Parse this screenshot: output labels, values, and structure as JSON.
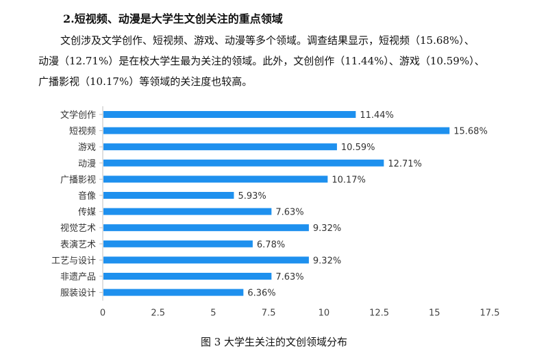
{
  "heading": "2.短视频、动漫是大学生文创关注的重点领域",
  "paragraph": {
    "line1": "文创涉及文学创作、短视频、游戏、动漫等多个领域。调查结果显示，短视频（15.68%）、",
    "line2": "动漫（12.71%）是在校大学生最为关注的领域。此外，文创创作（11.44%）、游戏（10.59%）、",
    "line3": "广播影视（10.17%）等领域的关注度也较高。"
  },
  "caption": "图 3  大学生关注的文创领域分布",
  "chart_data": {
    "type": "bar",
    "orientation": "horizontal",
    "categories": [
      "文学创作",
      "短视频",
      "游戏",
      "动漫",
      "广播影视",
      "音像",
      "传媒",
      "视觉艺术",
      "表演艺术",
      "工艺与设计",
      "非遗产品",
      "服装设计"
    ],
    "values": [
      11.44,
      15.68,
      10.59,
      12.71,
      10.17,
      5.93,
      7.63,
      9.32,
      6.78,
      9.32,
      7.63,
      6.36
    ],
    "value_labels": [
      "11.44%",
      "15.68%",
      "10.59%",
      "12.71%",
      "10.17%",
      "5.93%",
      "7.63%",
      "9.32%",
      "6.78%",
      "9.32%",
      "7.63%",
      "6.36%"
    ],
    "xlim": [
      0,
      17.5
    ],
    "xticks": [
      0,
      2.5,
      5,
      7.5,
      10,
      12.5,
      15,
      17.5
    ],
    "xtick_labels": [
      "0",
      "2.5",
      "5",
      "7.5",
      "10",
      "12.5",
      "15",
      "17.5"
    ],
    "bar_color": "#1e90ee",
    "grid": false,
    "legend": "none"
  }
}
